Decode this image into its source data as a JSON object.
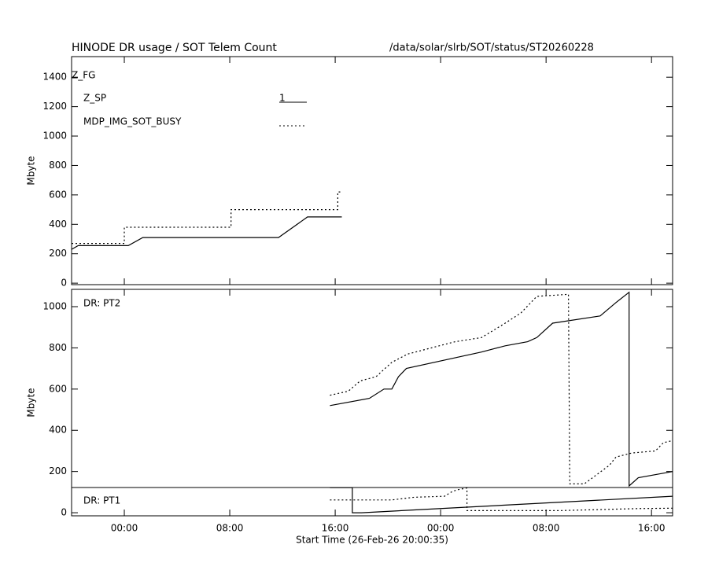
{
  "chart_data": [
    {
      "type": "line",
      "title": "HINODE DR usage / SOT Telem Count",
      "subtitle": "/data/solar/slrb/SOT/status/ST20260228",
      "ylabel": "Mbyte",
      "annotations": [
        "Z_FG",
        "1"
      ],
      "xlim": [
        -4,
        41.6
      ],
      "xticks": [
        0,
        8,
        16,
        24,
        32,
        40
      ],
      "ylim": [
        -10,
        1540
      ],
      "yticks": [
        0,
        200,
        400,
        600,
        800,
        1000,
        1200,
        1400
      ],
      "series": [
        {
          "name": "Z_SP",
          "color": "#000000",
          "style": "solid",
          "x": [
            -4,
            -3.5,
            0.3,
            1.4,
            11.7,
            13.9,
            16.5
          ],
          "values": [
            230,
            255,
            255,
            310,
            310,
            450,
            450
          ]
        },
        {
          "name": "MDP_IMG_SOT_BUSY",
          "color": "#000000",
          "style": "dotted",
          "x": [
            -4,
            0,
            0,
            8.1,
            8.1,
            16.2,
            16.2,
            16.5
          ],
          "values": [
            270,
            270,
            380,
            380,
            500,
            500,
            620,
            620
          ]
        }
      ]
    },
    {
      "type": "line",
      "xlabel": "Start Time (26-Feb-26 20:00:35)",
      "ylabel": "Mbyte",
      "annotations": [
        "DR: PT2",
        "DR: PT1"
      ],
      "xlim": [
        -4,
        41.6
      ],
      "xticks": [
        {
          "value": 0,
          "label": "00:00"
        },
        {
          "value": 8,
          "label": "08:00"
        },
        {
          "value": 16,
          "label": "16:00"
        },
        {
          "value": 24,
          "label": "00:00"
        },
        {
          "value": 32,
          "label": "08:00"
        },
        {
          "value": 40,
          "label": "16:00"
        }
      ],
      "ylim": [
        -15,
        1084
      ],
      "yticks": [
        0,
        200,
        400,
        600,
        800,
        1000
      ],
      "series": [
        {
          "color": "#000000",
          "style": "solid",
          "x": [
            15.6,
            18.6,
            19.7,
            20.3,
            20.8,
            21.4,
            27.1,
            28.9,
            30.6,
            31.3,
            32.5,
            36.1,
            37.3,
            38.3,
            38.3,
            39.0,
            41.6
          ],
          "values": [
            520,
            555,
            600,
            600,
            660,
            700,
            780,
            810,
            830,
            850,
            920,
            955,
            1020,
            1070,
            130,
            170,
            200
          ]
        },
        {
          "color": "#000000",
          "style": "dotted",
          "x": [
            15.6,
            17.0,
            17.9,
            19.1,
            20.3,
            21.5,
            23.3,
            25.1,
            27.1,
            28.9,
            30.1,
            31.3,
            33.7,
            33.8,
            34.9,
            36.8,
            37.3,
            38.5,
            40.3,
            40.9,
            41.6
          ],
          "values": [
            570,
            590,
            640,
            660,
            730,
            770,
            800,
            830,
            850,
            920,
            970,
            1050,
            1060,
            140,
            140,
            230,
            270,
            290,
            300,
            340,
            350
          ]
        },
        {
          "color": "#000000",
          "style": "solid",
          "x": [
            15.6,
            17.3,
            17.3,
            18.0,
            41.6
          ],
          "values": [
            122,
            122,
            0,
            0,
            80
          ]
        },
        {
          "color": "#000000",
          "style": "dotted",
          "x": [
            15.6,
            20.3,
            22.0,
            24.3,
            24.8,
            25.2,
            26.0,
            26.0,
            33.0,
            39.0,
            41.6
          ],
          "values": [
            62,
            62,
            75,
            80,
            100,
            110,
            120,
            10,
            10,
            20,
            22
          ]
        }
      ]
    }
  ]
}
